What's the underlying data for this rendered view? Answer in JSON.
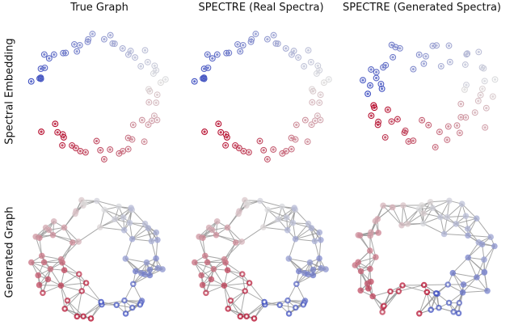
{
  "column_titles": [
    "True Graph",
    "SPECTRE (Real Spectra)",
    "SPECTRE (Generated Spectra)"
  ],
  "row_labels": [
    "Spectral Embedding",
    "Generated Graph"
  ],
  "colors": {
    "cold": "#3b4cc0",
    "mid": "#dddddd",
    "warm": "#b40426",
    "edge": "#999999"
  }
}
